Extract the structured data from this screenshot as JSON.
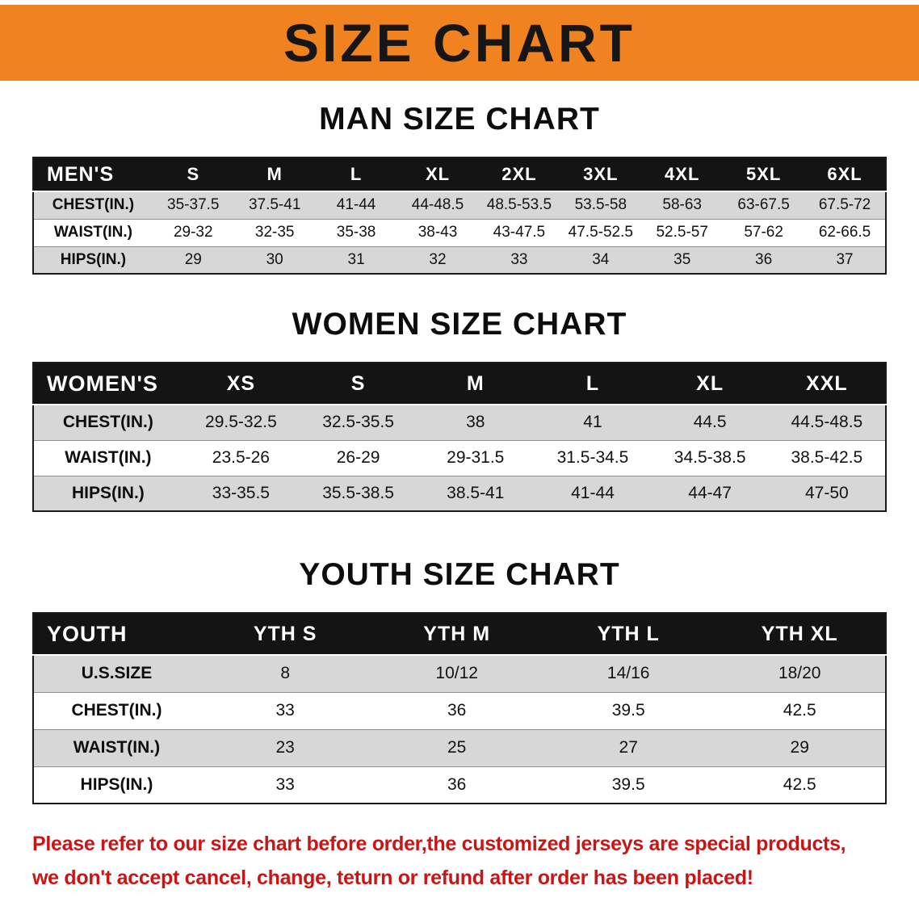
{
  "banner": {
    "title": "SIZE CHART"
  },
  "colors": {
    "banner_bg": "#f0821f",
    "header_bg": "#141414",
    "row_alt": "#d7d7d7",
    "footer_red": "#cb1414"
  },
  "sections": [
    {
      "heading": "MAN SIZE CHART",
      "table": {
        "header": [
          "MEN'S",
          "S",
          "M",
          "L",
          "XL",
          "2XL",
          "3XL",
          "4XL",
          "5XL",
          "6XL"
        ],
        "rows": [
          {
            "label": "CHEST(IN.)",
            "values": [
              "35-37.5",
              "37.5-41",
              "41-44",
              "44-48.5",
              "48.5-53.5",
              "53.5-58",
              "58-63",
              "63-67.5",
              "67.5-72"
            ]
          },
          {
            "label": "WAIST(IN.)",
            "values": [
              "29-32",
              "32-35",
              "35-38",
              "38-43",
              "43-47.5",
              "47.5-52.5",
              "52.5-57",
              "57-62",
              "62-66.5"
            ]
          },
          {
            "label": "HIPS(IN.)",
            "values": [
              "29",
              "30",
              "31",
              "32",
              "33",
              "34",
              "35",
              "36",
              "37"
            ]
          }
        ]
      }
    },
    {
      "heading": "WOMEN SIZE CHART",
      "table": {
        "header": [
          "WOMEN'S",
          "XS",
          "S",
          "M",
          "L",
          "XL",
          "XXL"
        ],
        "rows": [
          {
            "label": "CHEST(IN.)",
            "values": [
              "29.5-32.5",
              "32.5-35.5",
              "38",
              "41",
              "44.5",
              "44.5-48.5"
            ]
          },
          {
            "label": "WAIST(IN.)",
            "values": [
              "23.5-26",
              "26-29",
              "29-31.5",
              "31.5-34.5",
              "34.5-38.5",
              "38.5-42.5"
            ]
          },
          {
            "label": "HIPS(IN.)",
            "values": [
              "33-35.5",
              "35.5-38.5",
              "38.5-41",
              "41-44",
              "44-47",
              "47-50"
            ]
          }
        ]
      }
    },
    {
      "heading": "YOUTH SIZE CHART",
      "table": {
        "header": [
          "YOUTH",
          "YTH S",
          "YTH M",
          "YTH L",
          "YTH XL"
        ],
        "rows": [
          {
            "label": "U.S.SIZE",
            "values": [
              "8",
              "10/12",
              "14/16",
              "18/20"
            ]
          },
          {
            "label": "CHEST(IN.)",
            "values": [
              "33",
              "36",
              "39.5",
              "42.5"
            ]
          },
          {
            "label": "WAIST(IN.)",
            "values": [
              "23",
              "25",
              "27",
              "29"
            ]
          },
          {
            "label": "HIPS(IN.)",
            "values": [
              "33",
              "36",
              "39.5",
              "42.5"
            ]
          }
        ]
      }
    }
  ],
  "footer": {
    "line1": "Please refer to our size chart before order,the customized jerseys are special products,",
    "line2": "we don't accept cancel, change, teturn or refund after order has been placed!"
  }
}
